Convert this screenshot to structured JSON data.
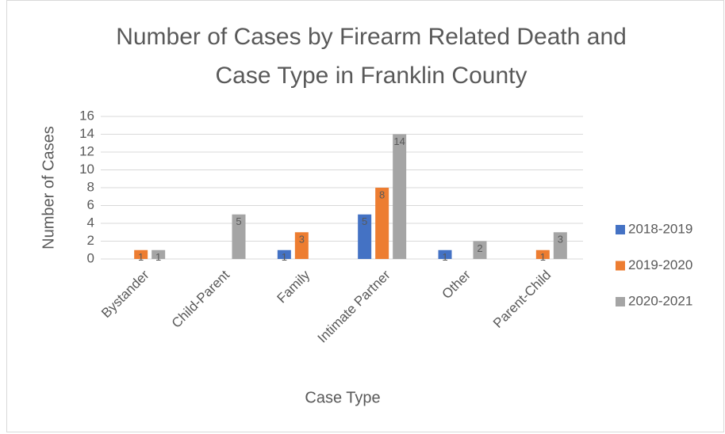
{
  "chart_data": {
    "type": "bar",
    "title": [
      "Number of Cases by Firearm Related Death and",
      "Case Type in Franklin County"
    ],
    "x_label": "Case Type",
    "y_label": "Number of Cases",
    "categories": [
      "Bystander",
      "Child-Parent",
      "Family",
      "Intimate Partner",
      "Other",
      "Parent-Child"
    ],
    "series": [
      {
        "name": "2018-2019",
        "color": "#4472c4",
        "values": [
          0,
          0,
          1,
          5,
          1,
          0
        ]
      },
      {
        "name": "2019-2020",
        "color": "#ed7d31",
        "values": [
          1,
          0,
          3,
          8,
          0,
          1
        ]
      },
      {
        "name": "2020-2021",
        "color": "#a5a5a5",
        "values": [
          1,
          5,
          0,
          14,
          2,
          3
        ]
      }
    ],
    "ylim": [
      0,
      16
    ],
    "yticks": [
      0,
      2,
      4,
      6,
      8,
      10,
      12,
      14,
      16
    ],
    "grid": true,
    "legend": "right"
  }
}
